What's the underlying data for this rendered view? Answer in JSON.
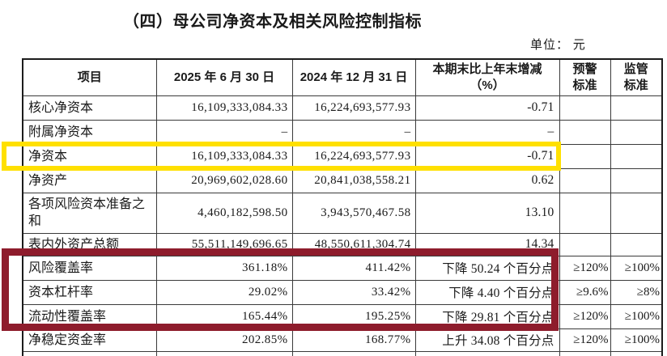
{
  "page": {
    "title": "（四）母公司净资本及相关风险控制指标",
    "unit_label": "单位： 元"
  },
  "table": {
    "headers": [
      {
        "line1": "项目",
        "line2": ""
      },
      {
        "line1": "2025 年 6 月 30 日",
        "line2": ""
      },
      {
        "line1": "2024 年 12 月 31 日",
        "line2": ""
      },
      {
        "line1": "本期末比上年末增减",
        "line2": "（%）"
      },
      {
        "line1": "预警",
        "line2": "标准"
      },
      {
        "line1": "监管",
        "line2": "标准"
      }
    ],
    "rows": [
      {
        "item": "核心净资本",
        "v2025": "16,109,333,084.33",
        "v2024": "16,224,693,577.93",
        "change": "-0.71",
        "warning": "",
        "regulatory": ""
      },
      {
        "item": "附属净资本",
        "v2025": "–",
        "v2024": "–",
        "change": "–",
        "warning": "",
        "regulatory": ""
      },
      {
        "item": "净资本",
        "v2025": "16,109,333,084.33",
        "v2024": "16,224,693,577.93",
        "change": "-0.71",
        "warning": "",
        "regulatory": ""
      },
      {
        "item": "净资产",
        "v2025": "20,969,602,028.60",
        "v2024": "20,841,038,558.21",
        "change": "0.62",
        "warning": "",
        "regulatory": ""
      },
      {
        "item": "各项风险资本准备之和",
        "v2025": "4,460,182,598.50",
        "v2024": "3,943,570,467.58",
        "change": "13.10",
        "warning": "",
        "regulatory": ""
      },
      {
        "item": "表内外资产总额",
        "v2025": "55,511,149,696.65",
        "v2024": "48,550,611,304.74",
        "change": "14.34",
        "warning": "",
        "regulatory": ""
      },
      {
        "item": "风险覆盖率",
        "v2025": "361.18%",
        "v2024": "411.42%",
        "change": "下降 50.24 个百分点",
        "warning": "≥120%",
        "regulatory": "≥100%"
      },
      {
        "item": "资本杠杆率",
        "v2025": "29.02%",
        "v2024": "33.42%",
        "change": "下降 4.40 个百分点",
        "warning": "≥9.6%",
        "regulatory": "≥8%"
      },
      {
        "item": "流动性覆盖率",
        "v2025": "165.44%",
        "v2024": "195.25%",
        "change": "下降 29.81 个百分点",
        "warning": "≥120%",
        "regulatory": "≥100%"
      },
      {
        "item": "净稳定资金率",
        "v2025": "202.85%",
        "v2024": "168.77%",
        "change": "上升 34.08 个百分点",
        "warning": "≥120%",
        "regulatory": "≥100%"
      }
    ]
  },
  "annotations": {
    "yellow_box": {
      "color": "#FFE000",
      "highlighted_item": "净资本"
    },
    "red_box": {
      "color": "#8E1C2C",
      "highlighted_items": "风险覆盖率、资本杠杆率、流动性覆盖率"
    }
  }
}
